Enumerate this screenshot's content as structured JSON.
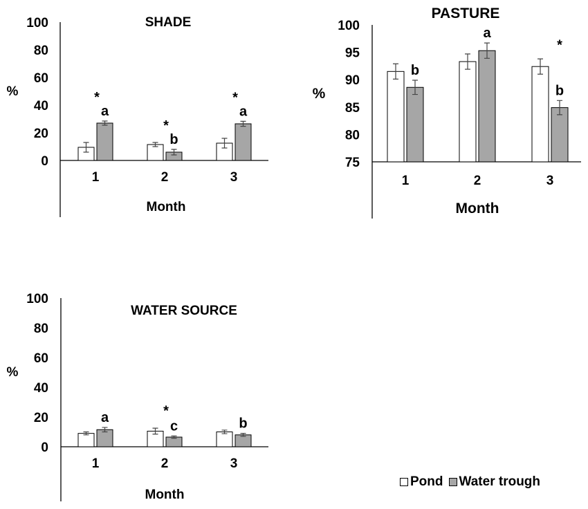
{
  "colors": {
    "pond": "#ffffff",
    "trough": "#a6a6a6",
    "stroke": "#000000"
  },
  "legend": [
    {
      "name": "Pond",
      "color": "#ffffff"
    },
    {
      "name": "Water trough",
      "color": "#a6a6a6"
    }
  ],
  "chart_data": [
    {
      "type": "bar",
      "title": "SHADE",
      "ylabel": "%",
      "xlabel": "Month",
      "categories": [
        "1",
        "2",
        "3"
      ],
      "ylim": [
        0,
        100
      ],
      "yticks": [
        0,
        20,
        40,
        60,
        80,
        100
      ],
      "series": [
        {
          "name": "Pond",
          "values": [
            9.5,
            11.5,
            12.5
          ],
          "errors": [
            3.5,
            1.5,
            3.5
          ]
        },
        {
          "name": "Water trough",
          "values": [
            27,
            6,
            26.5
          ],
          "errors": [
            1.5,
            2,
            1.8
          ]
        }
      ],
      "letters": [
        "a",
        "b",
        "a"
      ],
      "stars": [
        "*",
        "*",
        "*"
      ]
    },
    {
      "type": "bar",
      "title": "PASTURE",
      "ylabel": "%",
      "xlabel": "Month",
      "categories": [
        "1",
        "2",
        "3"
      ],
      "ylim": [
        75,
        100
      ],
      "yticks": [
        75,
        80,
        85,
        90,
        95,
        100
      ],
      "series": [
        {
          "name": "Pond",
          "values": [
            91.5,
            93.3,
            92.4
          ],
          "errors": [
            1.4,
            1.4,
            1.4
          ]
        },
        {
          "name": "Water trough",
          "values": [
            88.6,
            95.3,
            84.9
          ],
          "errors": [
            1.3,
            1.4,
            1.3
          ]
        }
      ],
      "letters": [
        "b",
        "a",
        "b"
      ],
      "stars": [
        "",
        "",
        "*"
      ]
    },
    {
      "type": "bar",
      "title": "WATER SOURCE",
      "ylabel": "%",
      "xlabel": "Month",
      "categories": [
        "1",
        "2",
        "3"
      ],
      "ylim": [
        0,
        100
      ],
      "yticks": [
        0,
        20,
        40,
        60,
        80,
        100
      ],
      "series": [
        {
          "name": "Pond",
          "values": [
            9,
            10.5,
            10
          ],
          "errors": [
            1,
            2,
            1.2
          ]
        },
        {
          "name": "Water trough",
          "values": [
            11.5,
            6.5,
            8
          ],
          "errors": [
            1.5,
            0.8,
            1
          ]
        }
      ],
      "letters": [
        "a",
        "c",
        "b"
      ],
      "stars": [
        "",
        "*",
        ""
      ]
    }
  ]
}
